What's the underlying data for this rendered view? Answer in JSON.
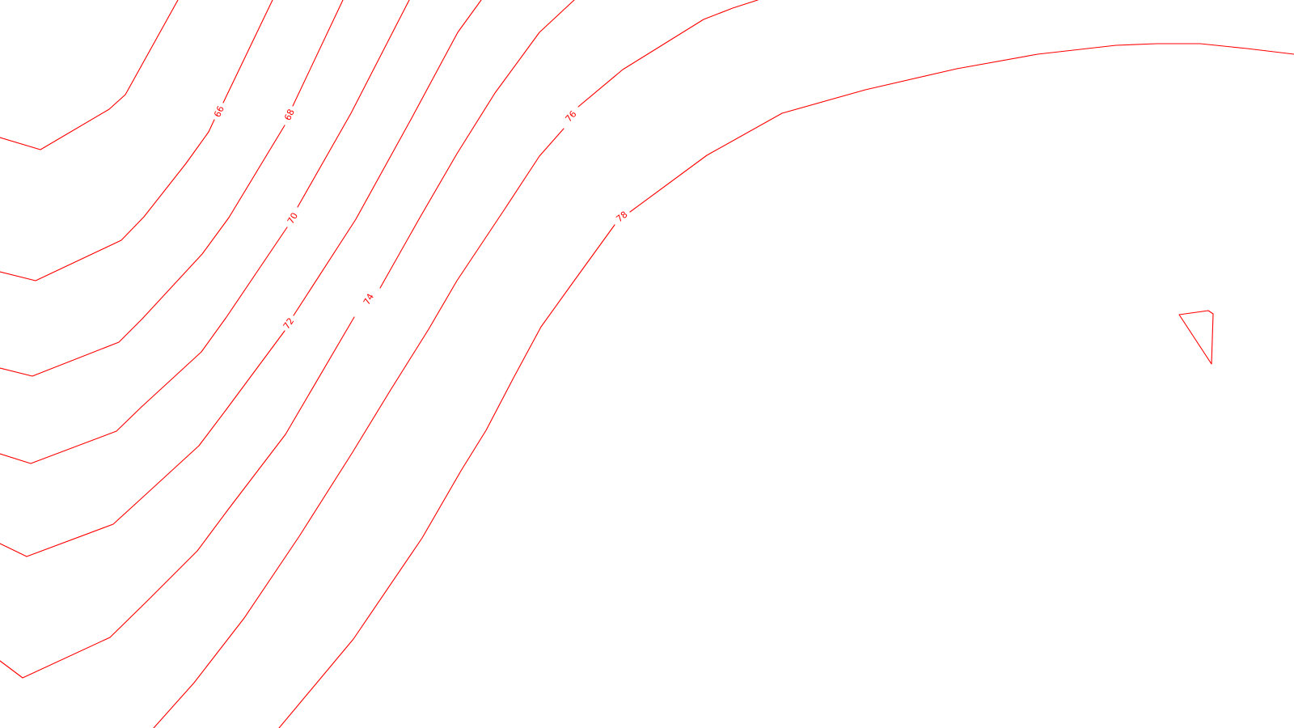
{
  "map": {
    "type": "contour-map",
    "line_color": "#ff0000",
    "background": "#ffffff",
    "contours": [
      {
        "id": "c64",
        "label": ""
      },
      {
        "id": "c66",
        "label": "66"
      },
      {
        "id": "c68",
        "label": "68"
      },
      {
        "id": "c70",
        "label": "70"
      },
      {
        "id": "c72",
        "label": "72"
      },
      {
        "id": "c74",
        "label": "74"
      },
      {
        "id": "c76",
        "label": "76"
      },
      {
        "id": "c78",
        "label": "78"
      },
      {
        "id": "c80",
        "label": ""
      }
    ]
  }
}
